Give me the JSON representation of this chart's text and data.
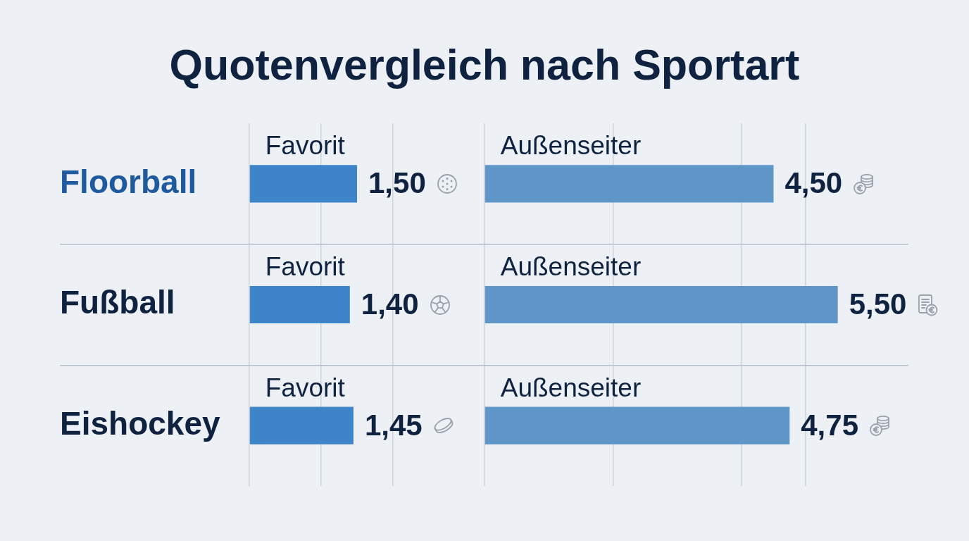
{
  "chart_data": [
    {
      "type": "bar",
      "title": "Quotenvergleich nach Sportart",
      "orientation": "horizontal",
      "categories": [
        "Floorball",
        "Fußball",
        "Eishockey"
      ],
      "series": [
        {
          "name": "Favorit",
          "color": "#3d84c9",
          "values": [
            1.5,
            1.4,
            1.45
          ],
          "value_labels": [
            "1,50",
            "1,40",
            "1,45"
          ]
        }
      ],
      "xlim": [
        0,
        3
      ],
      "xticks": [
        {
          "value": 0,
          "label": null
        },
        {
          "value": 1,
          "label": null
        },
        {
          "value": 2,
          "label": null
        }
      ],
      "grid": true,
      "tick_labels": "y"
    },
    {
      "type": "bar",
      "orientation": "horizontal",
      "categories": [
        null,
        null,
        null
      ],
      "series": [
        {
          "name": "Außenseiter",
          "color": "#5e96c8",
          "values": [
            4.5,
            5.5,
            4.75
          ],
          "value_labels": [
            "4,50",
            "5,50",
            "4,75"
          ]
        }
      ],
      "xlim": [
        0,
        6.6
      ],
      "xticks": [
        {
          "value": 0,
          "label": null
        },
        {
          "value": 2,
          "label": null
        },
        {
          "value": 4,
          "label": null
        },
        {
          "value": 5,
          "label": null
        }
      ],
      "grid": true,
      "tick_labels": false
    }
  ]
}
